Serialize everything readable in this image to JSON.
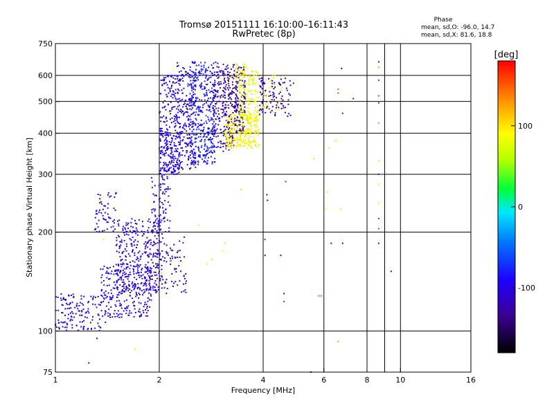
{
  "chart_data": {
    "type": "scatter",
    "title": "Tromsø 20151111 16:10:00–16:11:43",
    "subtitle": "RwPretec (8p)",
    "xlabel": "Frequency [MHz]",
    "ylabel": "Stationary phase Virtual Height [km]",
    "x_scale": "log2",
    "y_scale": "log",
    "xlim": [
      1,
      16
    ],
    "ylim": [
      75,
      750
    ],
    "x_ticks": [
      1,
      2,
      4,
      6,
      8,
      10,
      16
    ],
    "y_ticks": [
      75,
      100,
      200,
      300,
      400,
      500,
      600,
      750
    ],
    "x_tick_labels": [
      "1",
      "2",
      "4",
      "6",
      "8",
      "10",
      "16"
    ],
    "y_tick_labels": [
      "75",
      "100",
      "200",
      "300",
      "400",
      "500",
      "600",
      "750"
    ],
    "grid": true,
    "phase_header": "Phase",
    "phase_stats": [
      "mean, sd,O: -96.0, 14.7",
      "mean, sd,X: 81.6, 18.8"
    ],
    "colorbar": {
      "label": "[deg]",
      "range": [
        -180,
        180
      ],
      "ticks": [
        100,
        0,
        -100
      ],
      "tick_labels": [
        "100",
        "0",
        "-100"
      ]
    },
    "clusters": [
      {
        "phase": -98,
        "x": [
          1.0,
          1.4
        ],
        "y": [
          100,
          130
        ],
        "n": 140
      },
      {
        "phase": -95,
        "x": [
          1.35,
          1.9
        ],
        "y": [
          110,
          160
        ],
        "n": 260
      },
      {
        "phase": -96,
        "x": [
          1.3,
          1.5
        ],
        "y": [
          200,
          265
        ],
        "n": 60
      },
      {
        "phase": -100,
        "x": [
          1.5,
          2.05
        ],
        "y": [
          130,
          220
        ],
        "n": 300
      },
      {
        "phase": -95,
        "x": [
          1.9,
          2.15
        ],
        "y": [
          200,
          300
        ],
        "n": 90
      },
      {
        "phase": -98,
        "x": [
          2.0,
          2.3
        ],
        "y": [
          300,
          420
        ],
        "n": 200
      },
      {
        "phase": -100,
        "x": [
          2.0,
          2.3
        ],
        "y": [
          420,
          600
        ],
        "n": 120
      },
      {
        "phase": -100,
        "x": [
          2.25,
          2.55
        ],
        "y": [
          310,
          660
        ],
        "n": 220
      },
      {
        "phase": -80,
        "x": [
          2.45,
          2.9
        ],
        "y": [
          320,
          660
        ],
        "n": 360
      },
      {
        "phase": -115,
        "x": [
          2.85,
          3.05
        ],
        "y": [
          360,
          660
        ],
        "n": 110
      },
      {
        "phase": -125,
        "x": [
          3.05,
          3.3
        ],
        "y": [
          350,
          650
        ],
        "n": 160
      },
      {
        "phase": -130,
        "x": [
          3.3,
          3.55
        ],
        "y": [
          400,
          640
        ],
        "n": 150
      },
      {
        "phase": 95,
        "x": [
          3.1,
          3.9
        ],
        "y": [
          360,
          460
        ],
        "n": 260
      },
      {
        "phase": 80,
        "x": [
          3.4,
          3.9
        ],
        "y": [
          440,
          620
        ],
        "n": 130
      },
      {
        "phase": 95,
        "x": [
          3.3,
          3.6
        ],
        "y": [
          580,
          650
        ],
        "n": 25
      },
      {
        "phase": -120,
        "x": [
          3.9,
          4.9
        ],
        "y": [
          450,
          590
        ],
        "n": 100
      },
      {
        "phase": 90,
        "x": [
          4.0,
          4.6
        ],
        "y": [
          470,
          600
        ],
        "n": 25
      },
      {
        "phase": -120,
        "x": [
          1.8,
          2.4
        ],
        "y": [
          130,
          200
        ],
        "n": 100
      }
    ],
    "scattered_points": [
      {
        "x": 1.12,
        "y": 108,
        "phase": -100
      },
      {
        "x": 1.25,
        "y": 80,
        "phase": -110
      },
      {
        "x": 1.32,
        "y": 95,
        "phase": -100
      },
      {
        "x": 1.35,
        "y": 250,
        "phase": 90
      },
      {
        "x": 1.38,
        "y": 190,
        "phase": 90
      },
      {
        "x": 1.7,
        "y": 88,
        "phase": 100
      },
      {
        "x": 2.03,
        "y": 150,
        "phase": 60
      },
      {
        "x": 2.1,
        "y": 140,
        "phase": 40
      },
      {
        "x": 2.6,
        "y": 210,
        "phase": 100
      },
      {
        "x": 2.75,
        "y": 160,
        "phase": 80
      },
      {
        "x": 2.85,
        "y": 165,
        "phase": 60
      },
      {
        "x": 3.05,
        "y": 175,
        "phase": 80
      },
      {
        "x": 3.1,
        "y": 185,
        "phase": 100
      },
      {
        "x": 3.45,
        "y": 270,
        "phase": 100
      },
      {
        "x": 4.05,
        "y": 190,
        "phase": -60
      },
      {
        "x": 4.05,
        "y": 170,
        "phase": -120
      },
      {
        "x": 4.1,
        "y": 260,
        "phase": -120
      },
      {
        "x": 4.12,
        "y": 250,
        "phase": -100
      },
      {
        "x": 4.5,
        "y": 170,
        "phase": -100
      },
      {
        "x": 4.6,
        "y": 130,
        "phase": -90
      },
      {
        "x": 4.6,
        "y": 123,
        "phase": -60
      },
      {
        "x": 4.65,
        "y": 285,
        "phase": -60
      },
      {
        "x": 5.5,
        "y": 75,
        "phase": -100
      },
      {
        "x": 5.6,
        "y": 335,
        "phase": 100
      },
      {
        "x": 5.8,
        "y": 128,
        "phase": 150
      },
      {
        "x": 5.9,
        "y": 128,
        "phase": 150
      },
      {
        "x": 6.1,
        "y": 235,
        "phase": 90
      },
      {
        "x": 6.15,
        "y": 265,
        "phase": 80
      },
      {
        "x": 6.2,
        "y": 360,
        "phase": 100
      },
      {
        "x": 6.3,
        "y": 185,
        "phase": -100
      },
      {
        "x": 6.5,
        "y": 380,
        "phase": 100
      },
      {
        "x": 6.6,
        "y": 545,
        "phase": 150
      },
      {
        "x": 6.6,
        "y": 530,
        "phase": 160
      },
      {
        "x": 6.6,
        "y": 500,
        "phase": 140
      },
      {
        "x": 6.6,
        "y": 93,
        "phase": 130
      },
      {
        "x": 6.7,
        "y": 235,
        "phase": 100
      },
      {
        "x": 6.75,
        "y": 630,
        "phase": -100
      },
      {
        "x": 6.8,
        "y": 460,
        "phase": -80
      },
      {
        "x": 6.8,
        "y": 185,
        "phase": -100
      },
      {
        "x": 7.3,
        "y": 510,
        "phase": -80
      },
      {
        "x": 8.65,
        "y": 660,
        "phase": -90
      },
      {
        "x": 8.65,
        "y": 635,
        "phase": 130
      },
      {
        "x": 8.65,
        "y": 580,
        "phase": -60
      },
      {
        "x": 8.65,
        "y": 520,
        "phase": -40
      },
      {
        "x": 8.65,
        "y": 495,
        "phase": -60
      },
      {
        "x": 8.65,
        "y": 430,
        "phase": 130
      },
      {
        "x": 8.65,
        "y": 330,
        "phase": 100
      },
      {
        "x": 8.65,
        "y": 300,
        "phase": -80
      },
      {
        "x": 8.65,
        "y": 280,
        "phase": 80
      },
      {
        "x": 8.65,
        "y": 245,
        "phase": 90
      },
      {
        "x": 8.65,
        "y": 220,
        "phase": -60
      },
      {
        "x": 8.65,
        "y": 205,
        "phase": 160
      },
      {
        "x": 8.65,
        "y": 185,
        "phase": -110
      },
      {
        "x": 9.4,
        "y": 152,
        "phase": -100
      }
    ]
  }
}
